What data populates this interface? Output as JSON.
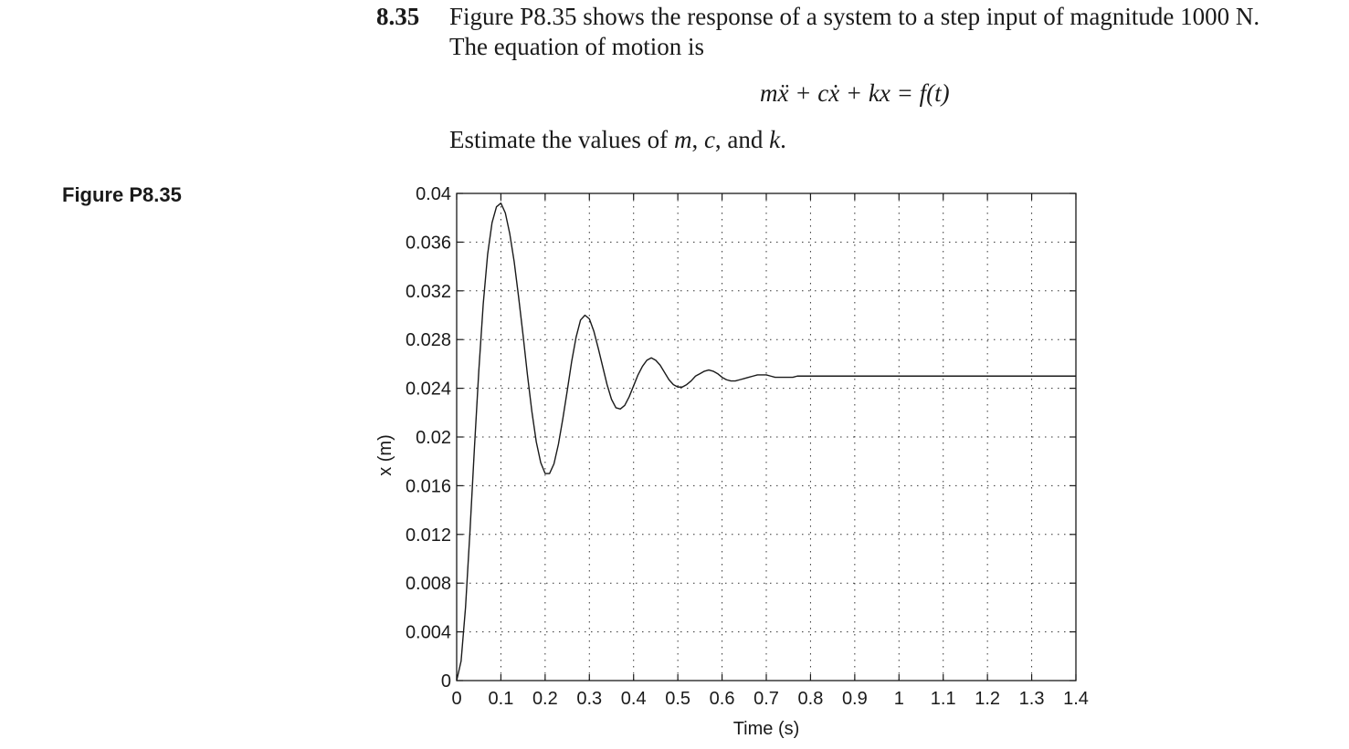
{
  "problem": {
    "number": "8.35",
    "text": "Figure P8.35 shows the response of a system to a step input of magnitude 1000 N. The equation of motion is",
    "equation": "mẍ + cẋ + kx = f(t)",
    "estimate_prefix": "Estimate the values of ",
    "var_m": "m",
    "sep1": ", ",
    "var_c": "c",
    "sep2": ", and ",
    "var_k": "k",
    "end": "."
  },
  "figure": {
    "label": "Figure P8.35"
  },
  "chart_data": {
    "type": "line",
    "title": "",
    "xlabel": "Time (s)",
    "ylabel": "x (m)",
    "xlim": [
      0,
      1.4
    ],
    "ylim": [
      0,
      0.04
    ],
    "grid": true,
    "x_ticks": [
      0,
      0.1,
      0.2,
      0.3,
      0.4,
      0.5,
      0.6,
      0.7,
      0.8,
      0.9,
      1,
      1.1,
      1.2,
      1.3,
      1.4
    ],
    "x_tick_labels": [
      "0",
      "0.1",
      "0.2",
      "0.3",
      "0.4",
      "0.5",
      "0.6",
      "0.7",
      "0.8",
      "0.9",
      "1",
      "1.1",
      "1.2",
      "1.3",
      "1.4"
    ],
    "y_ticks": [
      0,
      0.004,
      0.008,
      0.012,
      0.016,
      0.02,
      0.024,
      0.028,
      0.032,
      0.036,
      0.04
    ],
    "y_tick_labels": [
      "0",
      "0.004",
      "0.008",
      "0.012",
      "0.016",
      "0.02",
      "0.024",
      "0.028",
      "0.032",
      "0.036",
      "0.04"
    ],
    "series": [
      {
        "color": "#1a1a1a",
        "x": [
          0,
          0.01,
          0.02,
          0.03,
          0.04,
          0.05,
          0.06,
          0.07,
          0.08,
          0.09,
          0.1,
          0.11,
          0.12,
          0.13,
          0.14,
          0.15,
          0.16,
          0.17,
          0.18,
          0.19,
          0.2,
          0.21,
          0.22,
          0.23,
          0.24,
          0.25,
          0.26,
          0.27,
          0.28,
          0.29,
          0.3,
          0.31,
          0.32,
          0.33,
          0.34,
          0.35,
          0.36,
          0.37,
          0.38,
          0.39,
          0.4,
          0.41,
          0.42,
          0.43,
          0.44,
          0.45,
          0.46,
          0.47,
          0.48,
          0.49,
          0.5,
          0.51,
          0.52,
          0.53,
          0.54,
          0.55,
          0.56,
          0.57,
          0.58,
          0.59,
          0.6,
          0.61,
          0.62,
          0.63,
          0.64,
          0.65,
          0.66,
          0.67,
          0.68,
          0.69,
          0.7,
          0.71,
          0.72,
          0.73,
          0.74,
          0.75,
          0.76,
          0.77,
          0.78,
          0.79,
          0.8,
          0.81,
          0.82,
          0.83,
          0.84,
          0.85,
          0.86,
          0.87,
          0.88,
          0.89,
          0.9,
          0.91,
          0.92,
          0.93,
          0.94,
          0.95,
          0.96,
          0.97,
          0.98,
          0.99,
          1,
          1.01,
          1.02,
          1.03,
          1.04,
          1.05,
          1.06,
          1.07,
          1.08,
          1.09,
          1.1,
          1.11,
          1.12,
          1.13,
          1.14,
          1.15,
          1.16,
          1.17,
          1.18,
          1.19,
          1.2,
          1.21,
          1.22,
          1.23,
          1.24,
          1.25,
          1.26,
          1.27,
          1.28,
          1.29,
          1.3,
          1.31,
          1.32,
          1.33,
          1.34,
          1.35,
          1.36,
          1.37,
          1.38,
          1.39,
          1.4
        ],
        "y": [
          0,
          0.0016,
          0.006,
          0.0122,
          0.019,
          0.0254,
          0.0309,
          0.035,
          0.0376,
          0.0389,
          0.0392,
          0.0384,
          0.0367,
          0.0344,
          0.0315,
          0.0284,
          0.0251,
          0.0221,
          0.0196,
          0.0179,
          0.017,
          0.017,
          0.0178,
          0.0194,
          0.0215,
          0.0238,
          0.0262,
          0.0282,
          0.0296,
          0.03,
          0.0297,
          0.0287,
          0.0273,
          0.0258,
          0.0243,
          0.0231,
          0.0224,
          0.0223,
          0.0226,
          0.0233,
          0.0242,
          0.0251,
          0.0258,
          0.0263,
          0.0265,
          0.0263,
          0.0259,
          0.0253,
          0.0247,
          0.0243,
          0.0241,
          0.0241,
          0.0243,
          0.0246,
          0.025,
          0.0252,
          0.0254,
          0.0255,
          0.0254,
          0.0252,
          0.0249,
          0.0247,
          0.0246,
          0.0246,
          0.0247,
          0.0248,
          0.0249,
          0.025,
          0.0251,
          0.0251,
          0.0251,
          0.025,
          0.0249,
          0.0249,
          0.0249,
          0.0249,
          0.0249,
          0.025,
          0.025,
          0.025,
          0.025,
          0.025,
          0.025,
          0.025,
          0.025,
          0.025,
          0.025,
          0.025,
          0.025,
          0.025,
          0.025,
          0.025,
          0.025,
          0.025,
          0.025,
          0.025,
          0.025,
          0.025,
          0.025,
          0.025,
          0.025,
          0.025,
          0.025,
          0.025,
          0.025,
          0.025,
          0.025,
          0.025,
          0.025,
          0.025,
          0.025,
          0.025,
          0.025,
          0.025,
          0.025,
          0.025,
          0.025,
          0.025,
          0.025,
          0.025,
          0.025,
          0.025,
          0.025,
          0.025,
          0.025,
          0.025,
          0.025,
          0.025,
          0.025,
          0.025,
          0.025,
          0.025,
          0.025,
          0.025,
          0.025,
          0.025,
          0.025,
          0.025,
          0.025,
          0.025,
          0.025
        ]
      }
    ]
  }
}
